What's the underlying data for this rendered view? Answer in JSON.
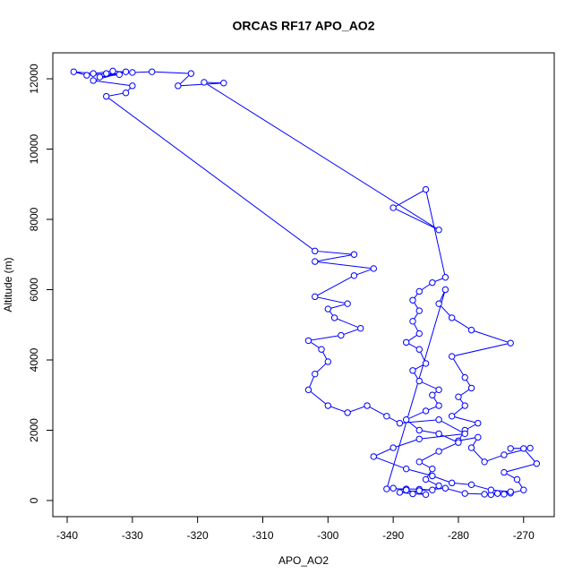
{
  "chart_data": {
    "type": "line",
    "title": "ORCAS RF17 APO_AO2",
    "x_label": "APO_AO2",
    "y_label": "Altitude (m)",
    "color": "#0000ff",
    "markers": "open-circle",
    "x": [
      -274,
      -273,
      -275,
      -272,
      -270,
      -271,
      -273,
      -268,
      -270,
      -272,
      -269,
      -273,
      -276,
      -278,
      -277,
      -280,
      -279,
      -277,
      -281,
      -279,
      -280,
      -278,
      -279,
      -281,
      -272,
      -278,
      -281,
      -283,
      -282,
      -291,
      -288,
      -286,
      -284,
      -283,
      -285,
      -284,
      -286,
      -283,
      -280,
      -283,
      -286,
      -288,
      -285,
      -283,
      -284,
      -283,
      -286,
      -287,
      -285,
      -286,
      -288,
      -286,
      -287,
      -286,
      -287,
      -286,
      -284,
      -282,
      -285,
      -290,
      -283,
      -319,
      -316,
      -323,
      -321,
      -327,
      -330,
      -333,
      -336,
      -339,
      -337,
      -334,
      -332,
      -335,
      -331,
      -336,
      -330,
      -331,
      -334,
      -302,
      -296,
      -302,
      -293,
      -296,
      -302,
      -297,
      -300,
      -299,
      -295,
      -298,
      -303,
      -301,
      -300,
      -302,
      -303,
      -300,
      -297,
      -294,
      -291,
      -289,
      -283,
      -279,
      -286,
      -290,
      -293,
      -288,
      -284,
      -281,
      -278,
      -275,
      -272,
      -276,
      -279,
      -282,
      -286,
      -289,
      -287,
      -285,
      -288,
      -290
    ],
    "values": [
      200,
      180,
      170,
      210,
      300,
      600,
      800,
      1050,
      1480,
      1480,
      1490,
      1300,
      1100,
      1500,
      1800,
      1700,
      2000,
      2200,
      2400,
      2700,
      2950,
      3200,
      3500,
      4100,
      4480,
      4850,
      5200,
      5600,
      6000,
      330,
      330,
      320,
      300,
      420,
      600,
      900,
      1100,
      1400,
      1650,
      1900,
      2000,
      2300,
      2550,
      2700,
      3000,
      3150,
      3400,
      3700,
      3900,
      4300,
      4500,
      4750,
      5100,
      5400,
      5700,
      5950,
      6200,
      6350,
      8850,
      8330,
      7700,
      11900,
      11880,
      11800,
      12150,
      12200,
      12180,
      12220,
      12150,
      12200,
      12100,
      12150,
      12120,
      12050,
      12200,
      11950,
      11800,
      11600,
      11500,
      7100,
      7000,
      6800,
      6600,
      6400,
      5800,
      5600,
      5450,
      5200,
      4900,
      4700,
      4550,
      4300,
      3950,
      3600,
      3150,
      2700,
      2500,
      2700,
      2400,
      2200,
      2300,
      1900,
      1750,
      1500,
      1250,
      900,
      700,
      500,
      450,
      300,
      250,
      180,
      200,
      350,
      280,
      230,
      190,
      170,
      300,
      350
    ],
    "xlim": [
      -342.2,
      -265.3
    ],
    "ylim": [
      -459,
      12739
    ],
    "xticks": [
      -340,
      -330,
      -320,
      -310,
      -300,
      -290,
      -280,
      -270
    ],
    "yticks": [
      0,
      2000,
      4000,
      6000,
      8000,
      10000,
      12000
    ]
  }
}
